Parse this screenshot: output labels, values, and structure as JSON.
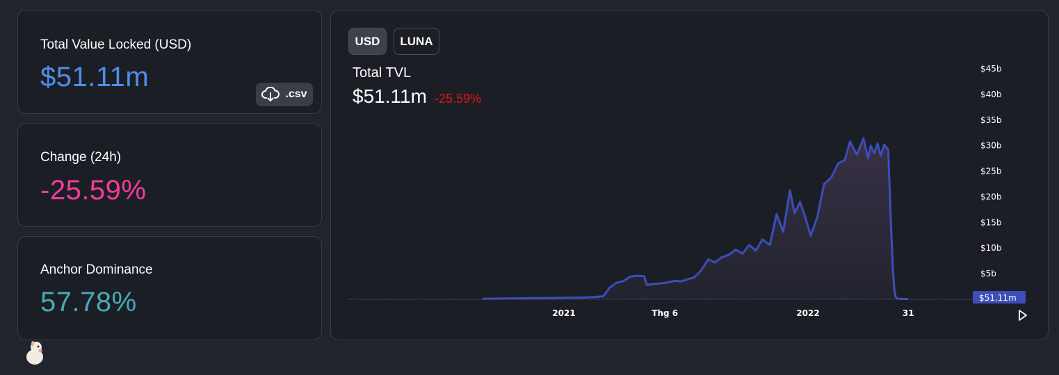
{
  "stats": {
    "tvl": {
      "label": "Total Value Locked (USD)",
      "value": "$51.11m",
      "color": "#4f8fea"
    },
    "change": {
      "label": "Change (24h)",
      "value": "-25.59%",
      "color": "#fd3c99"
    },
    "dominance": {
      "label": "Anchor Dominance",
      "value": "57.78%",
      "color": "#46acb7"
    },
    "csv_label": ".csv",
    "csv_icon": "cloud-download-icon"
  },
  "chart_panel": {
    "toggle": [
      "USD",
      "LUNA"
    ],
    "active_toggle": "USD",
    "title": "Total TVL",
    "value": "$51.11m",
    "change": "-25.59%",
    "change_color": "#e01616",
    "current_value_label": "$51.11m",
    "play_icon": "play-icon"
  },
  "chart_data": {
    "type": "area",
    "title": "Total TVL",
    "series": [
      {
        "x": [
          "2020-09-01",
          "2020-10-01",
          "2020-11-01",
          "2020-12-01",
          "2021-01-01",
          "2021-02-01",
          "2021-02-15",
          "2021-03-01",
          "2021-03-10",
          "2021-03-20",
          "2021-04-01",
          "2021-04-10",
          "2021-04-20",
          "2021-05-01",
          "2021-05-05",
          "2021-05-15",
          "2021-05-25",
          "2021-06-05",
          "2021-06-15",
          "2021-06-25",
          "2021-07-05",
          "2021-07-15",
          "2021-07-25",
          "2021-08-05",
          "2021-08-15",
          "2021-08-25",
          "2021-09-05",
          "2021-09-15",
          "2021-09-25",
          "2021-10-05",
          "2021-10-15",
          "2021-10-25",
          "2021-11-05",
          "2021-11-15",
          "2021-11-25",
          "2021-12-05",
          "2021-12-12",
          "2021-12-20",
          "2021-12-28",
          "2022-01-05",
          "2022-01-15",
          "2022-01-25",
          "2022-02-05",
          "2022-02-15",
          "2022-02-25",
          "2022-03-05",
          "2022-03-15",
          "2022-03-25",
          "2022-04-01",
          "2022-04-05",
          "2022-04-10",
          "2022-04-15",
          "2022-04-20",
          "2022-04-25",
          "2022-05-01",
          "2022-05-05",
          "2022-05-08",
          "2022-05-10",
          "2022-05-12",
          "2022-05-14",
          "2022-05-20",
          "2022-05-31"
        ],
        "y": [
          0.1,
          0.15,
          0.2,
          0.25,
          0.3,
          0.35,
          0.45,
          0.6,
          2.2,
          3.2,
          3.6,
          4.4,
          4.6,
          4.5,
          2.8,
          3.0,
          3.1,
          3.3,
          3.6,
          3.5,
          3.9,
          4.3,
          5.6,
          7.8,
          7.2,
          8.2,
          8.7,
          9.7,
          8.9,
          10.6,
          9.5,
          11.7,
          10.6,
          16.6,
          13.2,
          21.3,
          16.8,
          19.0,
          16.0,
          12.4,
          16.1,
          22.5,
          23.8,
          26.5,
          27.2,
          30.8,
          28.2,
          31.4,
          27.5,
          30.0,
          28.5,
          30.4,
          28.0,
          30.2,
          29.2,
          15.0,
          6.0,
          2.0,
          0.5,
          0.15,
          0.08,
          0.051
        ]
      }
    ],
    "x_tick_labels": [
      "2021",
      "Thg 6",
      "2022",
      "31"
    ],
    "y_tick_labels": [
      "$5b",
      "$10b",
      "$15b",
      "$20b",
      "$25b",
      "$30b",
      "$35b",
      "$40b",
      "$45b"
    ],
    "ylim": [
      0,
      45
    ],
    "unit": "USD (billions)",
    "line_color": "#3d4eb8",
    "grid": false
  }
}
